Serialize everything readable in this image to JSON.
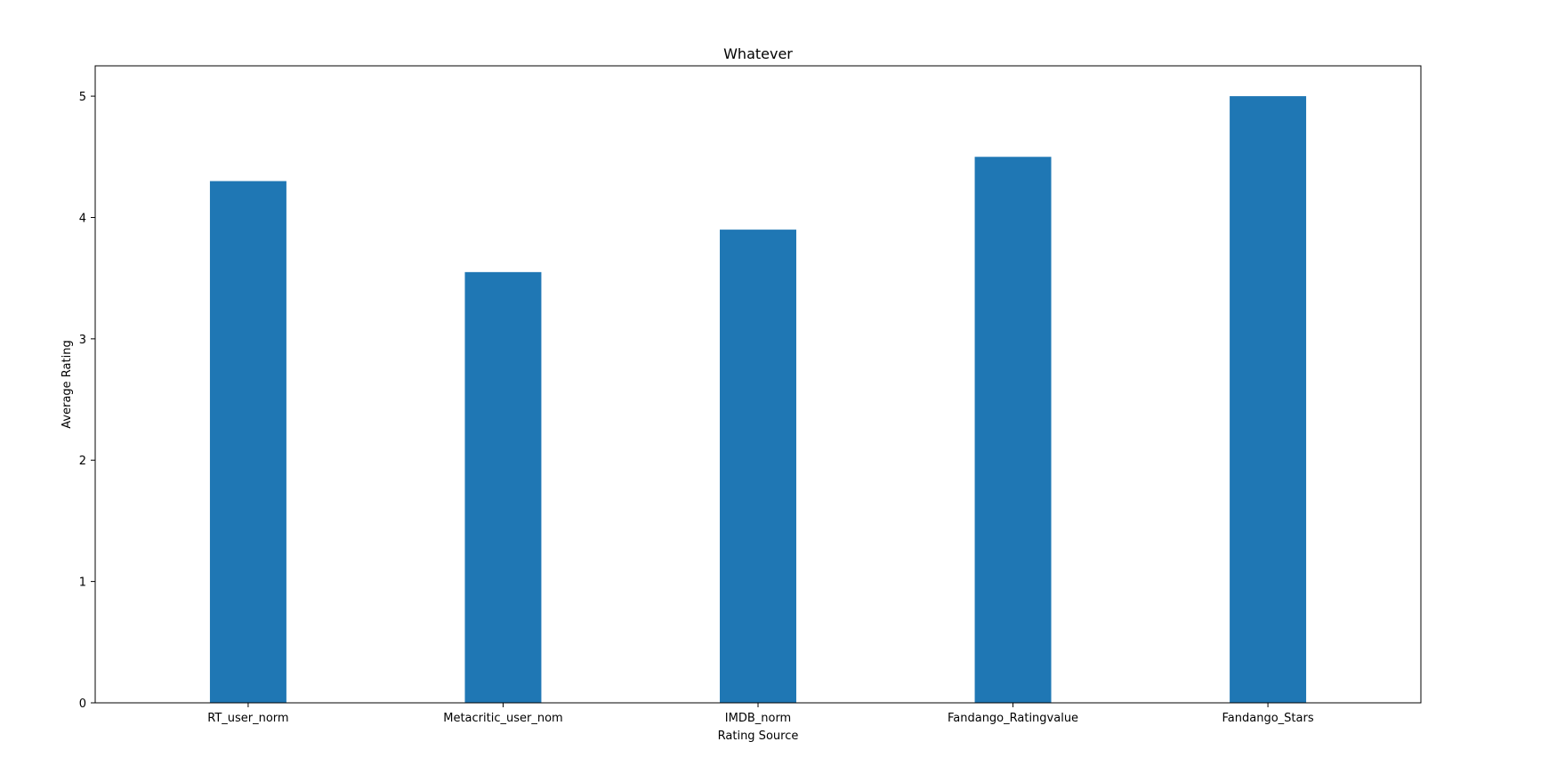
{
  "chart_data": {
    "type": "bar",
    "title": "Whatever",
    "xlabel": "Rating Source",
    "ylabel": "Average Rating",
    "categories": [
      "RT_user_norm",
      "Metacritic_user_nom",
      "IMDB_norm",
      "Fandango_Ratingvalue",
      "Fandango_Stars"
    ],
    "values": [
      4.3,
      3.55,
      3.9,
      4.5,
      5.0
    ],
    "ylim": [
      0,
      5.25
    ],
    "yticks": [
      0,
      1,
      2,
      3,
      4,
      5
    ],
    "grid": false,
    "bar_color": "#1f77b4"
  }
}
